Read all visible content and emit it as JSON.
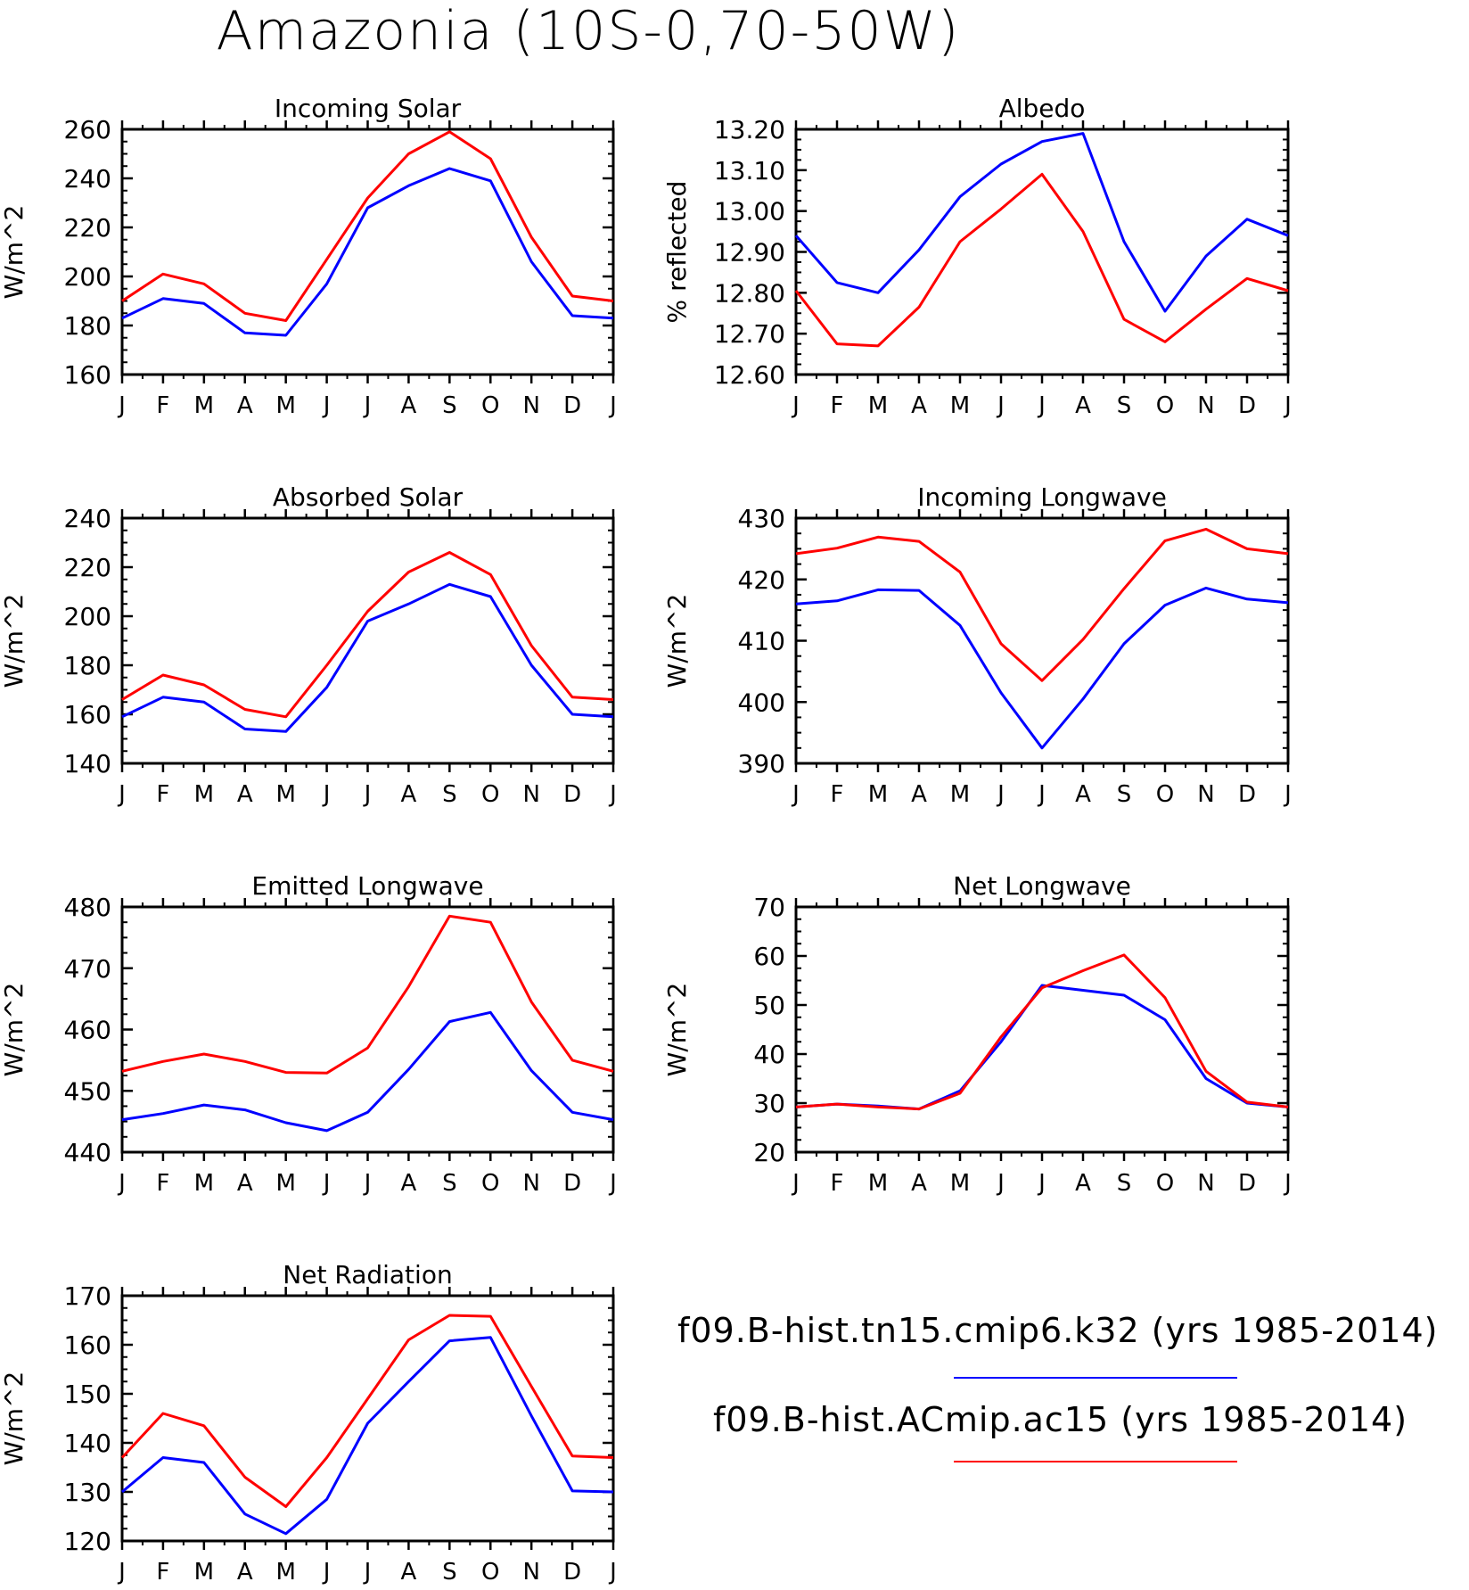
{
  "title": "Amazonia (10S-0,70-50W)",
  "months": [
    "J",
    "F",
    "M",
    "A",
    "M",
    "J",
    "J",
    "A",
    "S",
    "O",
    "N",
    "D",
    "J"
  ],
  "legend": [
    {
      "label": "f09.B-hist.tn15.cmip6.k32 (yrs 1985-2014)",
      "color": "#0000ff"
    },
    {
      "label": "f09.B-hist.ACmip.ac15 (yrs 1985-2014)",
      "color": "#ff0000"
    }
  ],
  "chart_data": [
    {
      "type": "line",
      "title": "Incoming Solar",
      "ylabel": "W/m^2",
      "ylim": [
        160,
        260
      ],
      "yticks": [
        "160",
        "180",
        "200",
        "220",
        "240",
        "260"
      ],
      "categories": [
        "J",
        "F",
        "M",
        "A",
        "M",
        "J",
        "J",
        "A",
        "S",
        "O",
        "N",
        "D",
        "J"
      ],
      "series": [
        {
          "color": "#0000ff",
          "values": [
            183,
            191,
            189,
            177,
            176,
            197,
            228,
            237,
            244,
            239,
            206,
            184,
            183
          ]
        },
        {
          "color": "#ff0000",
          "values": [
            190,
            201,
            197,
            185,
            182,
            207,
            232,
            250,
            259,
            248,
            216,
            192,
            190
          ]
        }
      ]
    },
    {
      "type": "line",
      "title": "Albedo",
      "ylabel": "% reflected",
      "ylim": [
        12.6,
        13.2
      ],
      "yticks": [
        "12.60",
        "12.70",
        "12.80",
        "12.90",
        "13.00",
        "13.10",
        "13.20"
      ],
      "categories": [
        "J",
        "F",
        "M",
        "A",
        "M",
        "J",
        "J",
        "A",
        "S",
        "O",
        "N",
        "D",
        "J"
      ],
      "series": [
        {
          "color": "#0000ff",
          "values": [
            12.94,
            12.825,
            12.8,
            12.905,
            13.035,
            13.115,
            13.17,
            13.19,
            12.925,
            12.755,
            12.89,
            12.98,
            12.94
          ]
        },
        {
          "color": "#ff0000",
          "values": [
            12.805,
            12.675,
            12.67,
            12.765,
            12.925,
            13.005,
            13.09,
            12.95,
            12.735,
            12.68,
            12.76,
            12.835,
            12.805
          ]
        }
      ]
    },
    {
      "type": "line",
      "title": "Absorbed Solar",
      "ylabel": "W/m^2",
      "ylim": [
        140,
        240
      ],
      "yticks": [
        "140",
        "160",
        "180",
        "200",
        "220",
        "240"
      ],
      "categories": [
        "J",
        "F",
        "M",
        "A",
        "M",
        "J",
        "J",
        "A",
        "S",
        "O",
        "N",
        "D",
        "J"
      ],
      "series": [
        {
          "color": "#0000ff",
          "values": [
            159,
            167,
            165,
            154,
            153,
            171,
            198,
            205,
            213,
            208,
            180,
            160,
            159
          ]
        },
        {
          "color": "#ff0000",
          "values": [
            166,
            176,
            172,
            162,
            159,
            180,
            202,
            218,
            226,
            217,
            188,
            167,
            166
          ]
        }
      ]
    },
    {
      "type": "line",
      "title": "Incoming Longwave",
      "ylabel": "W/m^2",
      "ylim": [
        390,
        430
      ],
      "yticks": [
        "390",
        "400",
        "410",
        "420",
        "430"
      ],
      "categories": [
        "J",
        "F",
        "M",
        "A",
        "M",
        "J",
        "J",
        "A",
        "S",
        "O",
        "N",
        "D",
        "J"
      ],
      "series": [
        {
          "color": "#0000ff",
          "values": [
            416,
            416.5,
            418.3,
            418.2,
            412.5,
            401.5,
            392.5,
            400.5,
            409.5,
            415.8,
            418.6,
            416.8,
            416.2
          ]
        },
        {
          "color": "#ff0000",
          "values": [
            424.2,
            425.1,
            426.9,
            426.2,
            421.2,
            409.5,
            403.5,
            410.2,
            418.5,
            426.3,
            428.2,
            425,
            424.2
          ]
        }
      ]
    },
    {
      "type": "line",
      "title": "Emitted Longwave",
      "ylabel": "W/m^2",
      "ylim": [
        440,
        480
      ],
      "yticks": [
        "440",
        "450",
        "460",
        "470",
        "480"
      ],
      "categories": [
        "J",
        "F",
        "M",
        "A",
        "M",
        "J",
        "J",
        "A",
        "S",
        "O",
        "N",
        "D",
        "J"
      ],
      "series": [
        {
          "color": "#0000ff",
          "values": [
            445.3,
            446.3,
            447.7,
            446.9,
            444.8,
            443.5,
            446.5,
            453.5,
            461.3,
            462.8,
            453.3,
            446.5,
            445.3
          ]
        },
        {
          "color": "#ff0000",
          "values": [
            453.2,
            454.8,
            456,
            454.8,
            453,
            452.9,
            457,
            467,
            478.5,
            477.5,
            464.5,
            455,
            453.2
          ]
        }
      ]
    },
    {
      "type": "line",
      "title": "Net Longwave",
      "ylabel": "W/m^2",
      "ylim": [
        20,
        70
      ],
      "yticks": [
        "20",
        "30",
        "40",
        "50",
        "60",
        "70"
      ],
      "categories": [
        "J",
        "F",
        "M",
        "A",
        "M",
        "J",
        "J",
        "A",
        "S",
        "O",
        "N",
        "D",
        "J"
      ],
      "series": [
        {
          "color": "#0000ff",
          "values": [
            29.2,
            29.8,
            29.4,
            28.8,
            32.5,
            42.5,
            54,
            53,
            52,
            47,
            35,
            30,
            29.2
          ]
        },
        {
          "color": "#ff0000",
          "values": [
            29.2,
            29.8,
            29.2,
            28.8,
            32,
            43.5,
            53.5,
            57,
            60.2,
            51.5,
            36.5,
            30.2,
            29.2
          ]
        }
      ]
    },
    {
      "type": "line",
      "title": "Net Radiation",
      "ylabel": "W/m^2",
      "ylim": [
        120,
        170
      ],
      "yticks": [
        "120",
        "130",
        "140",
        "150",
        "160",
        "170"
      ],
      "categories": [
        "J",
        "F",
        "M",
        "A",
        "M",
        "J",
        "J",
        "A",
        "S",
        "O",
        "N",
        "D",
        "J"
      ],
      "series": [
        {
          "color": "#0000ff",
          "values": [
            130,
            137,
            136,
            125.5,
            121.5,
            128.5,
            144,
            152.5,
            160.8,
            161.5,
            145.5,
            130.2,
            130
          ]
        },
        {
          "color": "#ff0000",
          "values": [
            137,
            146,
            143.5,
            133,
            127,
            137,
            149,
            161,
            166,
            165.8,
            151.5,
            137.3,
            137
          ]
        }
      ]
    }
  ]
}
